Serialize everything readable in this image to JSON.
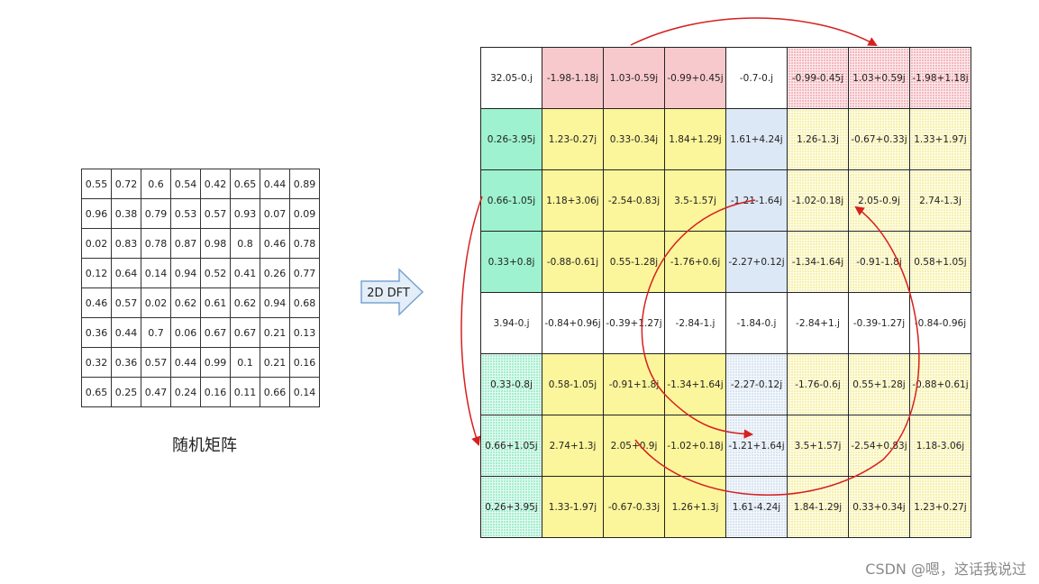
{
  "left_matrix": {
    "rows": [
      [
        "0.55",
        "0.72",
        "0.6",
        "0.54",
        "0.42",
        "0.65",
        "0.44",
        "0.89"
      ],
      [
        "0.96",
        "0.38",
        "0.79",
        "0.53",
        "0.57",
        "0.93",
        "0.07",
        "0.09"
      ],
      [
        "0.02",
        "0.83",
        "0.78",
        "0.87",
        "0.98",
        "0.8",
        "0.46",
        "0.78"
      ],
      [
        "0.12",
        "0.64",
        "0.14",
        "0.94",
        "0.52",
        "0.41",
        "0.26",
        "0.77"
      ],
      [
        "0.46",
        "0.57",
        "0.02",
        "0.62",
        "0.61",
        "0.62",
        "0.94",
        "0.68"
      ],
      [
        "0.36",
        "0.44",
        "0.7",
        "0.06",
        "0.67",
        "0.67",
        "0.21",
        "0.13"
      ],
      [
        "0.32",
        "0.36",
        "0.57",
        "0.44",
        "0.99",
        "0.1",
        "0.21",
        "0.16"
      ],
      [
        "0.65",
        "0.25",
        "0.47",
        "0.24",
        "0.16",
        "0.11",
        "0.66",
        "0.14"
      ]
    ],
    "caption": "随机矩阵"
  },
  "transform": {
    "label": "2D DFT"
  },
  "right_matrix": {
    "rows": [
      [
        "32.05-0.j",
        "-1.98-1.18j",
        "1.03-0.59j",
        "-0.99+0.45j",
        "-0.7-0.j",
        "-0.99-0.45j",
        "1.03+0.59j",
        "-1.98+1.18j"
      ],
      [
        "0.26-3.95j",
        "1.23-0.27j",
        "0.33-0.34j",
        "1.84+1.29j",
        "1.61+4.24j",
        "1.26-1.3j",
        "-0.67+0.33j",
        "1.33+1.97j"
      ],
      [
        "0.66-1.05j",
        "1.18+3.06j",
        "-2.54-0.83j",
        "3.5-1.57j",
        "-1.21-1.64j",
        "-1.02-0.18j",
        "2.05-0.9j",
        "2.74-1.3j"
      ],
      [
        "0.33+0.8j",
        "-0.88-0.61j",
        "0.55-1.28j",
        "-1.76+0.6j",
        "-2.27+0.12j",
        "-1.34-1.64j",
        "-0.91-1.8j",
        "0.58+1.05j"
      ],
      [
        "3.94-0.j",
        "-0.84+0.96j",
        "-0.39+1.27j",
        "-2.84-1.j",
        "-1.84-0.j",
        "-2.84+1.j",
        "-0.39-1.27j",
        "-0.84-0.96j"
      ],
      [
        "0.33-0.8j",
        "0.58-1.05j",
        "-0.91+1.8j",
        "-1.34+1.64j",
        "-2.27-0.12j",
        "-1.76-0.6j",
        "0.55+1.28j",
        "-0.88+0.61j"
      ],
      [
        "0.66+1.05j",
        "2.74+1.3j",
        "2.05+0.9j",
        "-1.02+0.18j",
        "-1.21+1.64j",
        "3.5+1.57j",
        "-2.54+0.83j",
        "1.18-3.06j"
      ],
      [
        "0.26+3.95j",
        "1.33-1.97j",
        "-0.67-0.33j",
        "1.26+1.3j",
        "1.61-4.24j",
        "1.84-1.29j",
        "0.33+0.34j",
        "1.23+0.27j"
      ]
    ],
    "cell_colors": [
      [
        "white",
        "red",
        "red",
        "red",
        "white",
        "red-dot",
        "red-dot",
        "red-dot"
      ],
      [
        "green",
        "yellow",
        "yellow",
        "yellow",
        "blue",
        "yellow-dot",
        "yellow-dot",
        "yellow-dot"
      ],
      [
        "green",
        "yellow",
        "yellow",
        "yellow",
        "blue",
        "yellow-dot",
        "yellow-dot",
        "yellow-dot"
      ],
      [
        "green",
        "yellow",
        "yellow",
        "yellow",
        "blue",
        "yellow-dot",
        "yellow-dot",
        "yellow-dot"
      ],
      [
        "white",
        "white",
        "white",
        "white",
        "white",
        "white",
        "white",
        "white"
      ],
      [
        "green-dot",
        "yellow",
        "yellow",
        "yellow",
        "blue-dot",
        "yellow-dot",
        "yellow-dot",
        "yellow-dot"
      ],
      [
        "green-dot",
        "yellow",
        "yellow",
        "yellow",
        "blue-dot",
        "yellow-dot",
        "yellow-dot",
        "yellow-dot"
      ],
      [
        "green-dot",
        "yellow",
        "yellow",
        "yellow",
        "blue-dot",
        "yellow-dot",
        "yellow-dot",
        "yellow-dot"
      ]
    ]
  },
  "colors": {
    "arrow": "#d62020",
    "transform_arrow_fill": "#e3eef9",
    "transform_arrow_stroke": "#7aa3d1",
    "grid_line": "#222222",
    "watermark": "#8a8a8a"
  },
  "watermark": "CSDN @嗯，这话我说过"
}
